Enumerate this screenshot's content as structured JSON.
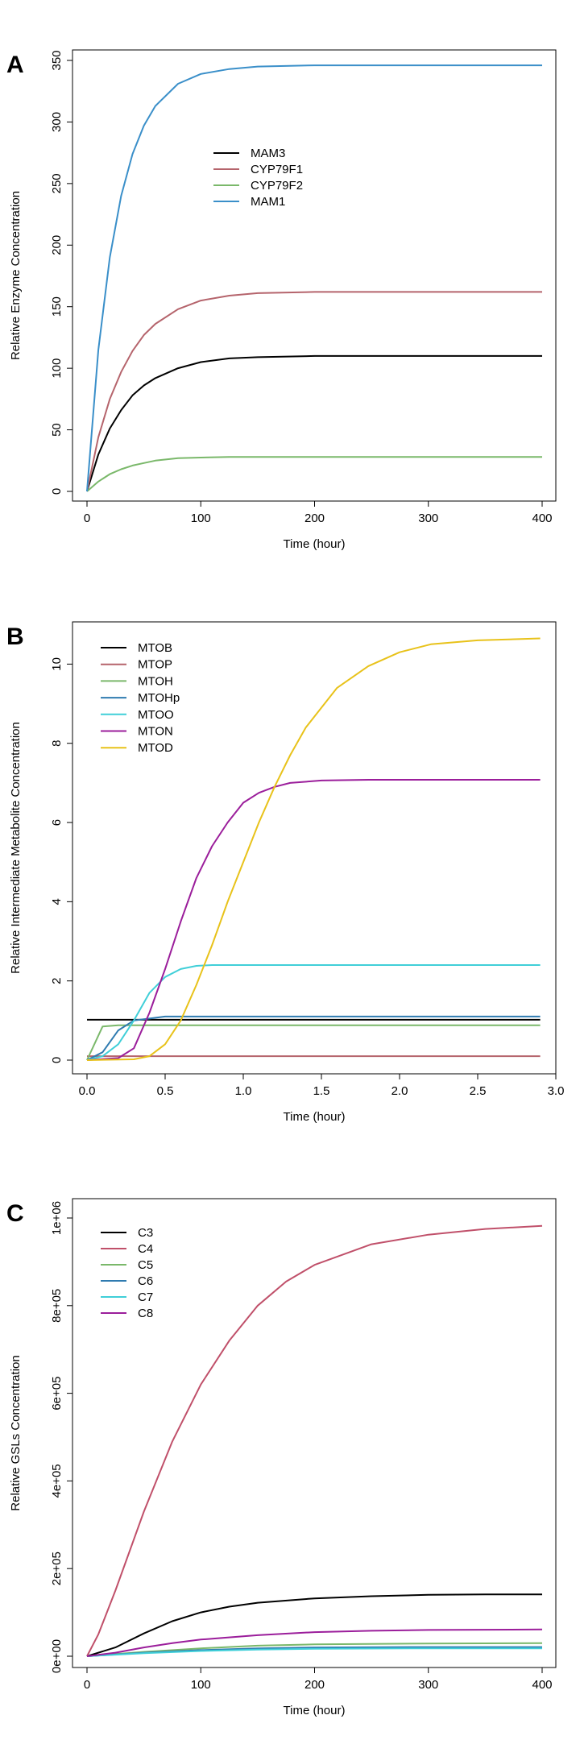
{
  "chart_data": [
    {
      "type": "line",
      "panel_label": "A",
      "xlabel": "Time (hour)",
      "ylabel": "Relative Enzyme Concentration",
      "xlim": [
        0,
        400
      ],
      "ylim": [
        0,
        350
      ],
      "xticks": [
        0,
        100,
        200,
        300,
        400
      ],
      "xtick_labels": [
        "0",
        "100",
        "200",
        "300",
        "400"
      ],
      "yticks": [
        0,
        50,
        100,
        150,
        200,
        250,
        300,
        350
      ],
      "ytick_labels": [
        "0",
        "50",
        "100",
        "150",
        "200",
        "250",
        "300",
        "350"
      ],
      "legend_position": "top-center",
      "series": [
        {
          "name": "MAM3",
          "color": "#000000",
          "x": [
            0,
            10,
            20,
            30,
            40,
            50,
            60,
            80,
            100,
            125,
            150,
            200,
            250,
            300,
            400
          ],
          "values": [
            0,
            30,
            51,
            66,
            78,
            86,
            92,
            100,
            105,
            108,
            109,
            110,
            110,
            110,
            110
          ]
        },
        {
          "name": "CYP79F1",
          "color": "#b5646c",
          "x": [
            0,
            10,
            20,
            30,
            40,
            50,
            60,
            80,
            100,
            125,
            150,
            200,
            250,
            300,
            400
          ],
          "values": [
            0,
            44,
            75,
            97,
            114,
            127,
            136,
            148,
            155,
            159,
            161,
            162,
            162,
            162,
            162
          ]
        },
        {
          "name": "CYP79F2",
          "color": "#7ab86a",
          "x": [
            0,
            10,
            20,
            30,
            40,
            50,
            60,
            80,
            100,
            125,
            150,
            200,
            250,
            300,
            400
          ],
          "values": [
            0,
            8,
            14,
            18,
            21,
            23,
            25,
            27,
            27.5,
            28,
            28,
            28,
            28,
            28,
            28
          ]
        },
        {
          "name": "MAM1",
          "color": "#3a8fc9",
          "x": [
            0,
            10,
            20,
            30,
            40,
            50,
            60,
            80,
            100,
            125,
            150,
            200,
            250,
            300,
            400
          ],
          "values": [
            0,
            115,
            190,
            240,
            274,
            297,
            313,
            331,
            339,
            343,
            345,
            346,
            346,
            346,
            346
          ]
        }
      ]
    },
    {
      "type": "line",
      "panel_label": "B",
      "xlabel": "Time (hour)",
      "ylabel": "Relative Intermediate Metabolite Concentration",
      "xlim": [
        0,
        3.0
      ],
      "ylim": [
        0,
        10.7
      ],
      "xticks": [
        0,
        0.5,
        1.0,
        1.5,
        2.0,
        2.5,
        3.0
      ],
      "xtick_labels": [
        "0.0",
        "0.5",
        "1.0",
        "1.5",
        "2.0",
        "2.5",
        "3.0"
      ],
      "yticks": [
        0,
        2,
        4,
        6,
        8,
        10
      ],
      "ytick_labels": [
        "0",
        "2",
        "4",
        "6",
        "8",
        "10"
      ],
      "legend_position": "top-left",
      "series": [
        {
          "name": "MTOB",
          "color": "#000000",
          "x": [
            0,
            2.9
          ],
          "values": [
            1.02,
            1.02
          ]
        },
        {
          "name": "MTOP",
          "color": "#b5646c",
          "x": [
            0,
            0.1,
            2.9
          ],
          "values": [
            0.1,
            0.1,
            0.1
          ]
        },
        {
          "name": "MTOH",
          "color": "#7ab86a",
          "x": [
            0,
            0.1,
            0.2,
            2.9
          ],
          "values": [
            0,
            0.85,
            0.88,
            0.88
          ]
        },
        {
          "name": "MTOHp",
          "color": "#2f7bb0",
          "x": [
            0,
            0.1,
            0.2,
            0.3,
            0.4,
            0.5,
            2.9
          ],
          "values": [
            0,
            0.2,
            0.75,
            1.0,
            1.05,
            1.1,
            1.1
          ]
        },
        {
          "name": "MTOO",
          "color": "#40cfd8",
          "x": [
            0,
            0.1,
            0.2,
            0.3,
            0.4,
            0.5,
            0.6,
            0.7,
            0.8,
            2.9
          ],
          "values": [
            0,
            0.1,
            0.4,
            1.0,
            1.7,
            2.1,
            2.3,
            2.38,
            2.4,
            2.4
          ]
        },
        {
          "name": "MTON",
          "color": "#9b1e9b",
          "x": [
            0,
            0.2,
            0.3,
            0.4,
            0.5,
            0.6,
            0.7,
            0.8,
            0.9,
            1.0,
            1.1,
            1.2,
            1.3,
            1.5,
            1.8,
            2.0,
            2.9
          ],
          "values": [
            0,
            0.05,
            0.3,
            1.2,
            2.3,
            3.5,
            4.6,
            5.4,
            6.0,
            6.5,
            6.75,
            6.9,
            7.0,
            7.06,
            7.08,
            7.08,
            7.08
          ]
        },
        {
          "name": "MTOD",
          "color": "#e8c21a",
          "x": [
            0,
            0.3,
            0.4,
            0.5,
            0.6,
            0.7,
            0.8,
            0.9,
            1.0,
            1.1,
            1.2,
            1.3,
            1.4,
            1.5,
            1.6,
            1.8,
            2.0,
            2.2,
            2.5,
            2.9
          ],
          "values": [
            0,
            0.02,
            0.1,
            0.4,
            1.0,
            1.9,
            2.9,
            4.0,
            5.0,
            6.0,
            6.9,
            7.7,
            8.4,
            8.9,
            9.4,
            9.95,
            10.3,
            10.5,
            10.6,
            10.65
          ]
        }
      ]
    },
    {
      "type": "line",
      "panel_label": "C",
      "xlabel": "Time (hour)",
      "ylabel": "Relative GSLs Concentration",
      "xlim": [
        0,
        400
      ],
      "ylim": [
        0,
        1000000
      ],
      "xticks": [
        0,
        100,
        200,
        300,
        400
      ],
      "xtick_labels": [
        "0",
        "100",
        "200",
        "300",
        "400"
      ],
      "yticks": [
        0,
        200000,
        400000,
        600000,
        800000,
        1000000
      ],
      "ytick_labels": [
        "0e+00",
        "2e+05",
        "4e+05",
        "6e+05",
        "8e+05",
        "1e+06"
      ],
      "legend_position": "top-left",
      "series": [
        {
          "name": "C3",
          "color": "#000000",
          "x": [
            0,
            25,
            50,
            75,
            100,
            125,
            150,
            200,
            250,
            300,
            350,
            400
          ],
          "values": [
            0,
            20000,
            52000,
            80000,
            100000,
            113000,
            122000,
            132000,
            137000,
            140000,
            141000,
            141000
          ]
        },
        {
          "name": "C4",
          "color": "#c0506a",
          "x": [
            0,
            10,
            25,
            50,
            75,
            100,
            125,
            150,
            175,
            200,
            250,
            300,
            350,
            400
          ],
          "values": [
            0,
            50000,
            150000,
            330000,
            490000,
            620000,
            720000,
            800000,
            855000,
            893000,
            940000,
            962000,
            975000,
            982000
          ]
        },
        {
          "name": "C5",
          "color": "#7ab86a",
          "x": [
            0,
            50,
            100,
            150,
            200,
            300,
            400
          ],
          "values": [
            0,
            10000,
            18000,
            24000,
            27000,
            29000,
            30000
          ]
        },
        {
          "name": "C6",
          "color": "#2f7bb0",
          "x": [
            0,
            50,
            100,
            150,
            200,
            300,
            400
          ],
          "values": [
            0,
            8000,
            14000,
            18000,
            20000,
            21000,
            21000
          ]
        },
        {
          "name": "C7",
          "color": "#40cfd8",
          "x": [
            0,
            50,
            100,
            150,
            200,
            300,
            400
          ],
          "values": [
            0,
            7000,
            12000,
            15000,
            17000,
            18000,
            18000
          ]
        },
        {
          "name": "C8",
          "color": "#9b1e9b",
          "x": [
            0,
            25,
            50,
            75,
            100,
            150,
            200,
            250,
            300,
            400
          ],
          "values": [
            0,
            8000,
            20000,
            30000,
            38000,
            48000,
            55000,
            58000,
            60000,
            61000
          ]
        }
      ]
    }
  ]
}
